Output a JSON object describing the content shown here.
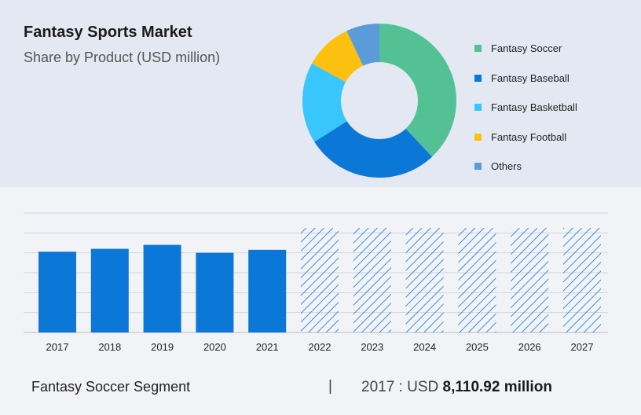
{
  "header": {
    "title": "Fantasy Sports Market",
    "subtitle": "Share by Product (USD million)"
  },
  "chart_data": [
    {
      "type": "pie",
      "style": "donut",
      "slices": [
        {
          "label": "Fantasy Soccer",
          "share": 38,
          "color": "#54c194"
        },
        {
          "label": "Fantasy Baseball",
          "share": 28,
          "color": "#0b77d7"
        },
        {
          "label": "Fantasy Basketball",
          "share": 17,
          "color": "#38c6fc"
        },
        {
          "label": "Fantasy Football",
          "share": 10,
          "color": "#fcc010"
        },
        {
          "label": "Others",
          "share": 7,
          "color": "#5b9bd9"
        }
      ],
      "legend": "right"
    },
    {
      "type": "bar",
      "categories": [
        "2017",
        "2018",
        "2019",
        "2020",
        "2021",
        "2022",
        "2023",
        "2024",
        "2025",
        "2026",
        "2027"
      ],
      "values": [
        8110.92,
        8400,
        8800,
        8000,
        8300,
        10500,
        10500,
        10500,
        10500,
        10500,
        10500
      ],
      "forecast_from": "2022",
      "ylim": [
        0,
        12000
      ],
      "grid": true,
      "colors": {
        "actual": "#0b77d7",
        "forecast_hatch": "#0b77d7"
      }
    }
  ],
  "footer": {
    "segment": "Fantasy Soccer Segment",
    "separator": "|",
    "prefix": "2017 : USD",
    "value": "8,110.92 million"
  }
}
